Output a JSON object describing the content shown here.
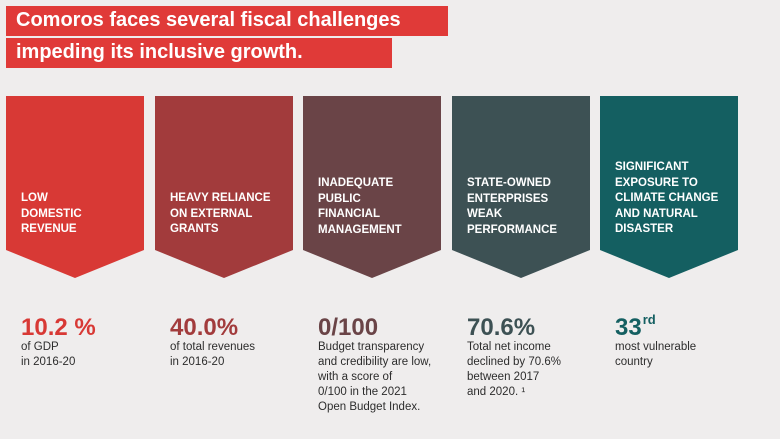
{
  "title": {
    "line1": "Comoros faces several fiscal challenges",
    "line2": "impeding its inclusive growth."
  },
  "columns": [
    {
      "label": "LOW\nDOMESTIC\nREVENUE",
      "color": "#d83935",
      "stat": "10.2 %",
      "stat_suffix": "",
      "description": "of GDP\nin 2016-20"
    },
    {
      "label": "HEAVY RELIANCE\nON EXTERNAL\nGRANTS",
      "color": "#a23b3c",
      "stat": "40.0%",
      "stat_suffix": "",
      "description": "of total revenues\nin 2016-20"
    },
    {
      "label": "INADEQUATE\nPUBLIC\nFINANCIAL\nMANAGEMENT",
      "color": "#6a4447",
      "stat": "0/100",
      "stat_suffix": "",
      "description": "Budget transparency\nand credibility are low,\nwith a score of\n0/100 in the 2021\nOpen Budget Index."
    },
    {
      "label": "STATE-OWNED\nENTERPRISES\nWEAK\nPERFORMANCE",
      "color": "#3d5154",
      "stat": "70.6%",
      "stat_suffix": "",
      "description": "Total net income\ndeclined by 70.6%\nbetween 2017\nand 2020. ¹"
    },
    {
      "label": "SIGNIFICANT\nEXPOSURE TO\nCLIMATE CHANGE\nAND NATURAL\nDISASTER",
      "color": "#145f61",
      "stat": "33",
      "stat_suffix": "rd",
      "description": "most vulnerable\ncountry"
    }
  ]
}
